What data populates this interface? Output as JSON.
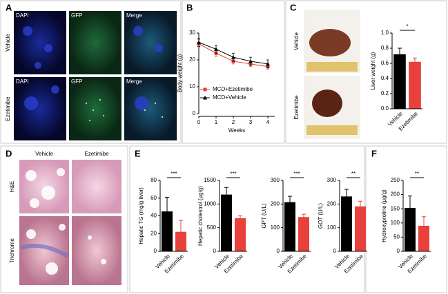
{
  "figure": {
    "panel_labels": [
      "A",
      "B",
      "C",
      "D",
      "E",
      "F"
    ],
    "a": {
      "columns": [
        "DAPI",
        "GFP",
        "Merge"
      ],
      "rows": [
        "Vehicle",
        "Ezetimibe"
      ]
    },
    "c": {
      "photo_labels": [
        "Vehicle",
        "Ezetimibe"
      ]
    },
    "d": {
      "columns": [
        "Vehicle",
        "Ezetimibe"
      ],
      "rows": [
        "H&E",
        "Trichrome"
      ]
    }
  },
  "chart_data": [
    {
      "type": "line",
      "xlabel": "Weeks",
      "ylabel": "Body weight (g)",
      "x": [
        0,
        1,
        2,
        3,
        4
      ],
      "xlim": [
        0,
        4
      ],
      "xticks": [
        0,
        1,
        2,
        3,
        4
      ],
      "ylim": [
        0,
        30
      ],
      "yticks": [
        0,
        10,
        20,
        30
      ],
      "series": [
        {
          "name": "MCD+Ezetimibe",
          "color": "#e8403a",
          "marker": "square",
          "values": [
            26,
            22.5,
            19.5,
            18.5,
            17.5
          ],
          "errors": [
            1.5,
            1.2,
            1,
            1,
            1
          ]
        },
        {
          "name": "MCD+Vehicle",
          "color": "#000000",
          "marker": "triangle",
          "values": [
            26.5,
            24,
            21,
            19.5,
            18.5
          ],
          "errors": [
            1.5,
            1.5,
            1.5,
            1.5,
            1.5
          ]
        }
      ]
    },
    {
      "type": "bar",
      "ylabel": "Liver weight (g)",
      "categories": [
        "Vehicle",
        "Ezetimibe"
      ],
      "values": [
        0.72,
        0.62
      ],
      "errors": [
        0.08,
        0.05
      ],
      "colors": [
        "#000000",
        "#e8403a"
      ],
      "significance": "*",
      "ylim": [
        0,
        1
      ],
      "yticks": [
        {
          "value": 0,
          "label": "0.0"
        },
        {
          "value": 0.2,
          "label": "0.2"
        },
        {
          "value": 0.4,
          "label": "0.4"
        },
        {
          "value": 0.6,
          "label": "0.6"
        },
        {
          "value": 0.8,
          "label": "0.8"
        },
        {
          "value": 1,
          "label": "1.0"
        }
      ]
    },
    {
      "type": "bar",
      "ylabel": "Hepatic TG (mg/g liver)",
      "categories": [
        "Vehicle",
        "Ezetimibe"
      ],
      "values": [
        45,
        22
      ],
      "errors": [
        16,
        13
      ],
      "colors": [
        "#000000",
        "#e8403a"
      ],
      "significance": "***",
      "ylim": [
        0,
        80
      ],
      "yticks": [
        0,
        20,
        40,
        60,
        80
      ]
    },
    {
      "type": "bar",
      "ylabel": "Hepatic cholestrol (μg/g)",
      "categories": [
        "Vehicle",
        "Ezetimibe"
      ],
      "values": [
        1200,
        700
      ],
      "errors": [
        150,
        50
      ],
      "colors": [
        "#000000",
        "#e8403a"
      ],
      "significance": "***",
      "ylim": [
        0,
        1500
      ],
      "yticks": [
        0,
        500,
        1000,
        1500
      ]
    },
    {
      "type": "bar",
      "ylabel": "GPT (U/L)",
      "categories": [
        "Vehicle",
        "Ezetimibe"
      ],
      "values": [
        208,
        145
      ],
      "errors": [
        25,
        12
      ],
      "colors": [
        "#000000",
        "#e8403a"
      ],
      "significance": "***",
      "ylim": [
        0,
        300
      ],
      "yticks": [
        0,
        100,
        200,
        300
      ]
    },
    {
      "type": "bar",
      "ylabel": "GOT (U/L)",
      "categories": [
        "Vehicle",
        "Ezetimibe"
      ],
      "values": [
        232,
        190
      ],
      "errors": [
        30,
        22
      ],
      "colors": [
        "#000000",
        "#e8403a"
      ],
      "significance": "**",
      "ylim": [
        0,
        300
      ],
      "yticks": [
        0,
        100,
        200,
        300
      ]
    },
    {
      "type": "bar",
      "ylabel": "Hydroxyproline (μg/g)",
      "categories": [
        "Vehicle",
        "Ezetimibe"
      ],
      "values": [
        153,
        90
      ],
      "errors": [
        42,
        32
      ],
      "colors": [
        "#000000",
        "#e8403a"
      ],
      "significance": "**",
      "ylim": [
        0,
        250
      ],
      "yticks": [
        0,
        50,
        100,
        150,
        200,
        250
      ]
    }
  ]
}
